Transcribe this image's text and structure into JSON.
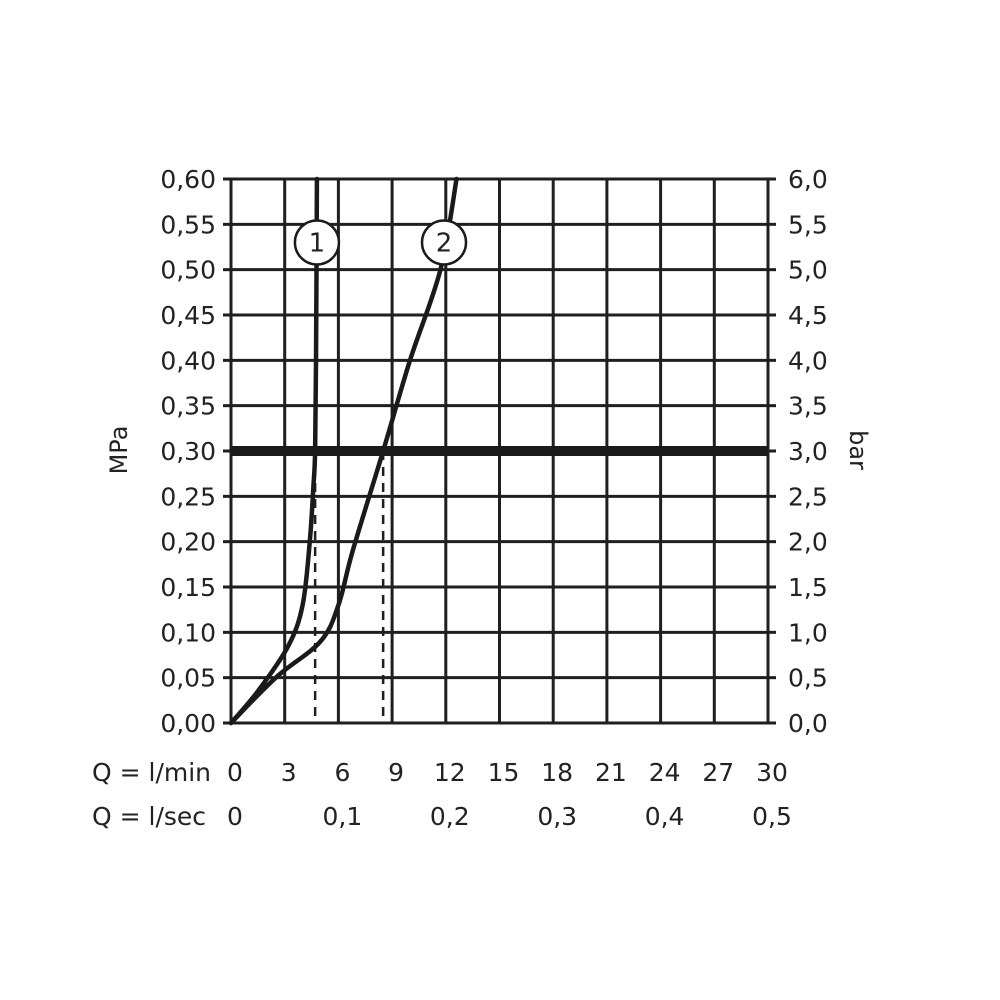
{
  "chart_data": {
    "type": "line",
    "left_axis": {
      "label": "MPa",
      "range": [
        0,
        0.6
      ],
      "ticks": [
        0,
        0.05,
        0.1,
        0.15,
        0.2,
        0.25,
        0.3,
        0.35,
        0.4,
        0.45,
        0.5,
        0.55,
        0.6
      ],
      "tick_labels": [
        "0,00",
        "0,05",
        "0,10",
        "0,15",
        "0,20",
        "0,25",
        "0,30",
        "0,35",
        "0,40",
        "0,45",
        "0,50",
        "0,55",
        "0,60"
      ]
    },
    "right_axis": {
      "label": "bar",
      "range": [
        0,
        6
      ],
      "tick_labels": [
        "0,0",
        "0,5",
        "1,0",
        "1,5",
        "2,0",
        "2,5",
        "3,0",
        "3,5",
        "4,0",
        "4,5",
        "5,0",
        "5,5",
        "6,0"
      ]
    },
    "x_axis": {
      "range": [
        0,
        30
      ],
      "row1_label": "Q = l/min",
      "row1_ticks": [
        0,
        3,
        6,
        9,
        12,
        15,
        18,
        21,
        24,
        27,
        30
      ],
      "row1_tick_labels": [
        "0",
        "3",
        "6",
        "9",
        "12",
        "15",
        "18",
        "21",
        "24",
        "27",
        "30"
      ],
      "row2_label": "Q = l/sec",
      "row2_ticks": [
        0,
        6,
        12,
        18,
        24,
        30
      ],
      "row2_tick_labels": [
        "0",
        "0,1",
        "0,2",
        "0,3",
        "0,4",
        "0,5"
      ]
    },
    "grid": true,
    "reference_line": {
      "y": 0.3
    },
    "series": [
      {
        "marker": "1",
        "marker_at": {
          "x": 4.8,
          "y": 0.53
        },
        "points": [
          {
            "x": 0,
            "y": 0
          },
          {
            "x": 1.5,
            "y": 0.035
          },
          {
            "x": 3.2,
            "y": 0.085
          },
          {
            "x": 4.0,
            "y": 0.13
          },
          {
            "x": 4.4,
            "y": 0.2
          },
          {
            "x": 4.6,
            "y": 0.26
          },
          {
            "x": 4.7,
            "y": 0.3
          },
          {
            "x": 4.75,
            "y": 0.4
          },
          {
            "x": 4.8,
            "y": 0.6
          }
        ],
        "dashed_drop_x": 4.7
      },
      {
        "marker": "2",
        "marker_at": {
          "x": 11.9,
          "y": 0.53
        },
        "points": [
          {
            "x": 0,
            "y": 0
          },
          {
            "x": 2.5,
            "y": 0.05
          },
          {
            "x": 5.0,
            "y": 0.09
          },
          {
            "x": 6.0,
            "y": 0.13
          },
          {
            "x": 6.8,
            "y": 0.19
          },
          {
            "x": 8.5,
            "y": 0.3
          },
          {
            "x": 10.0,
            "y": 0.4
          },
          {
            "x": 11.7,
            "y": 0.5
          },
          {
            "x": 12.6,
            "y": 0.6
          }
        ],
        "dashed_drop_x": 8.5
      }
    ]
  }
}
